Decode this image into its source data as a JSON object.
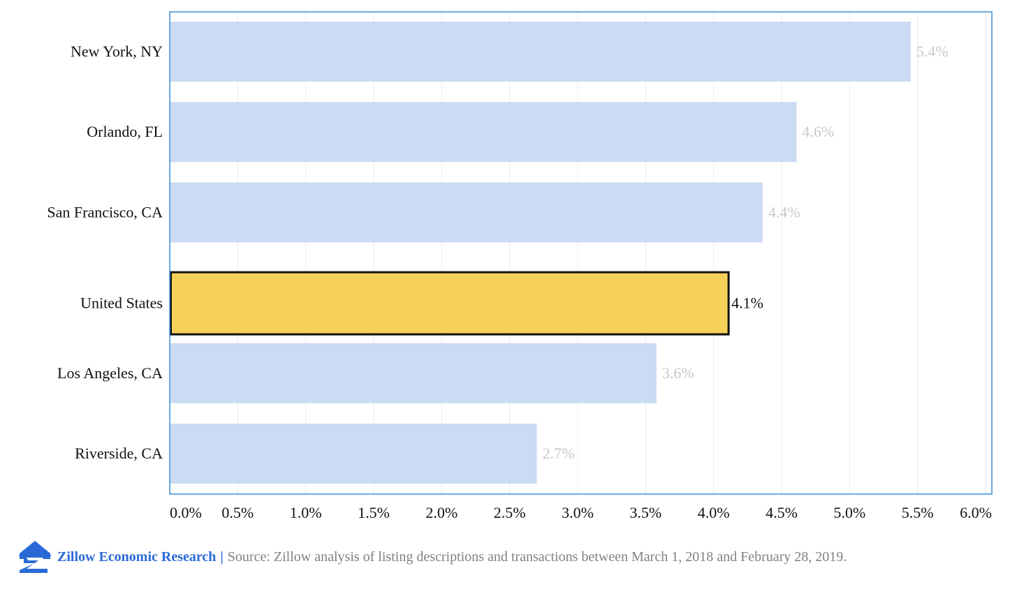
{
  "chart_data": {
    "type": "bar",
    "orientation": "horizontal",
    "categories": [
      "New York, NY",
      "Orlando, FL",
      "San Francisco, CA",
      "United States",
      "Los Angeles, CA",
      "Riverside, CA"
    ],
    "values": [
      5.45,
      4.61,
      4.36,
      4.11,
      3.58,
      2.7
    ],
    "value_labels": [
      "5.4%",
      "4.6%",
      "4.4%",
      "4.1%",
      "3.6%",
      "2.7%"
    ],
    "highlight_category": "United States",
    "xlim": [
      0,
      6
    ],
    "x_ticks": [
      0,
      0.5,
      1,
      1.5,
      2,
      2.5,
      3,
      3.5,
      4,
      4.5,
      5,
      5.5,
      6
    ],
    "x_tick_labels": [
      "0.0%",
      "0.5%",
      "1.0%",
      "1.5%",
      "2.0%",
      "2.5%",
      "3.0%",
      "3.5%",
      "4.0%",
      "4.5%",
      "5.0%",
      "5.5%",
      "6.0%"
    ],
    "grid": true,
    "colors": {
      "bar": "#cbdbf3",
      "highlight": "#f7d05a",
      "highlight_border": "#111111",
      "label": "#c8c8c8",
      "highlight_label": "#111111",
      "axis": "#3a8fd6",
      "grid": "#e9e9e9"
    }
  },
  "footer": {
    "brand": "Zillow Economic Research",
    "separator": "|",
    "source": "Source: Zillow analysis of listing descriptions and transactions between March 1, 2018 and February 28, 2019.",
    "logo_icon": "zillow-z-logo-icon"
  }
}
